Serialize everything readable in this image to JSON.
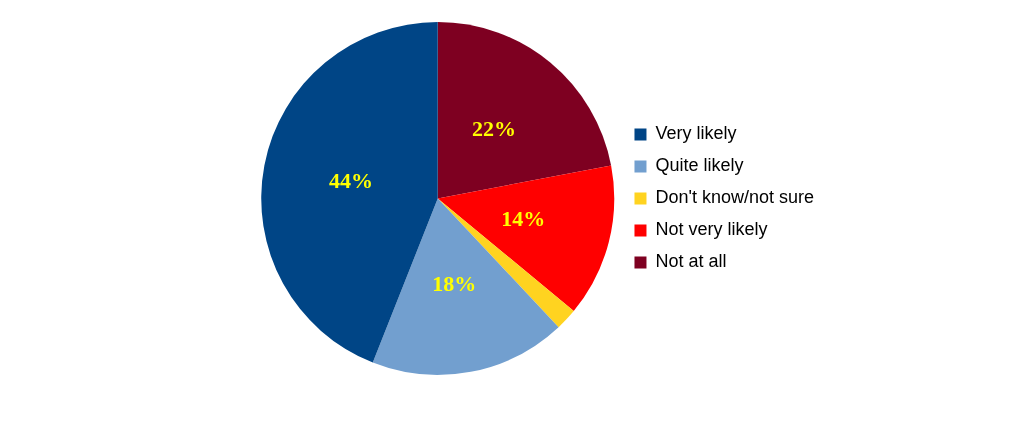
{
  "chart_data": {
    "type": "pie",
    "categories": [
      "Very likely",
      "Quite likely",
      "Don't know/not sure",
      "Not very likely",
      "Not at all"
    ],
    "values": [
      44,
      18,
      2,
      14,
      22
    ],
    "colors": [
      "#004586",
      "#729fcf",
      "#ffd320",
      "#ff0000",
      "#7e0021"
    ],
    "value_labels": [
      "44%",
      "18%",
      null,
      "14%",
      "22%"
    ],
    "legend": "right"
  }
}
